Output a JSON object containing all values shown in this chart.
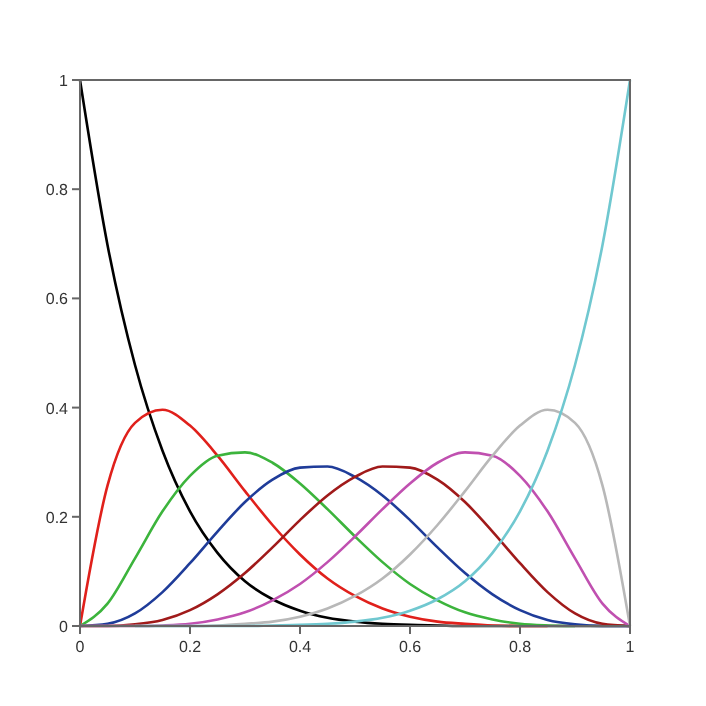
{
  "chart_data": {
    "type": "line",
    "x": [
      0,
      0.05,
      0.1,
      0.15,
      0.2,
      0.25,
      0.3,
      0.35,
      0.4,
      0.45,
      0.5,
      0.55,
      0.6,
      0.65,
      0.7,
      0.75,
      0.8,
      0.85,
      0.9,
      0.95,
      1
    ],
    "xlim": [
      0,
      1
    ],
    "ylim": [
      0,
      1
    ],
    "xticks": [
      0,
      0.2,
      0.4,
      0.6,
      0.8,
      1
    ],
    "yticks": [
      0,
      0.2,
      0.4,
      0.6,
      0.8,
      1
    ],
    "grid": false,
    "marker": "none",
    "line_style": "solid",
    "series": [
      {
        "color": "#000000",
        "values": [
          1,
          0.698,
          0.478,
          0.321,
          0.21,
          0.134,
          0.082,
          0.049,
          0.028,
          0.015,
          0.008,
          0.004,
          0.002,
          0.001,
          0,
          0,
          0,
          0,
          0,
          0,
          0
        ]
      },
      {
        "color": "#e0201b",
        "values": [
          0,
          0.257,
          0.372,
          0.396,
          0.367,
          0.312,
          0.247,
          0.185,
          0.131,
          0.087,
          0.055,
          0.032,
          0.017,
          0.008,
          0.004,
          0.001,
          0,
          0,
          null,
          null,
          null
        ]
      },
      {
        "color": "#3cb43c",
        "values": [
          0,
          0.041,
          0.124,
          0.21,
          0.275,
          0.312,
          0.318,
          0.299,
          0.261,
          0.214,
          0.164,
          0.117,
          0.077,
          0.047,
          0.025,
          0.012,
          0.004,
          0.001,
          0,
          null,
          null
        ]
      },
      {
        "color": "#1f3c99",
        "values": [
          0,
          0.004,
          0.023,
          0.062,
          0.115,
          0.173,
          0.227,
          0.268,
          0.29,
          0.292,
          0.273,
          0.239,
          0.194,
          0.144,
          0.097,
          0.058,
          0.029,
          0.011,
          0.003,
          0,
          0
        ]
      },
      {
        "color": "#a01a1a",
        "values": [
          0,
          0,
          0.003,
          0.011,
          0.029,
          0.058,
          0.097,
          0.144,
          0.194,
          0.239,
          0.273,
          0.292,
          0.29,
          0.268,
          0.227,
          0.173,
          0.115,
          0.062,
          0.023,
          0.004,
          0
        ]
      },
      {
        "color": "#c050b0",
        "values": [
          0,
          0,
          0,
          0.001,
          0.004,
          0.012,
          0.025,
          0.047,
          0.077,
          0.117,
          0.164,
          0.214,
          0.261,
          0.299,
          0.318,
          0.312,
          0.275,
          0.21,
          0.124,
          0.041,
          0
        ]
      },
      {
        "color": "#b8b8b8",
        "values": [
          0,
          0,
          0,
          0,
          0,
          0.001,
          0.004,
          0.008,
          0.017,
          0.032,
          0.055,
          0.087,
          0.131,
          0.185,
          0.247,
          0.312,
          0.367,
          0.396,
          0.372,
          0.257,
          0
        ]
      },
      {
        "color": "#70c8d0",
        "values": [
          null,
          null,
          0,
          0,
          0,
          0,
          0,
          0.001,
          0.002,
          0.004,
          0.008,
          0.015,
          0.028,
          0.049,
          0.082,
          0.134,
          0.21,
          0.321,
          0.478,
          0.698,
          1
        ]
      }
    ]
  }
}
